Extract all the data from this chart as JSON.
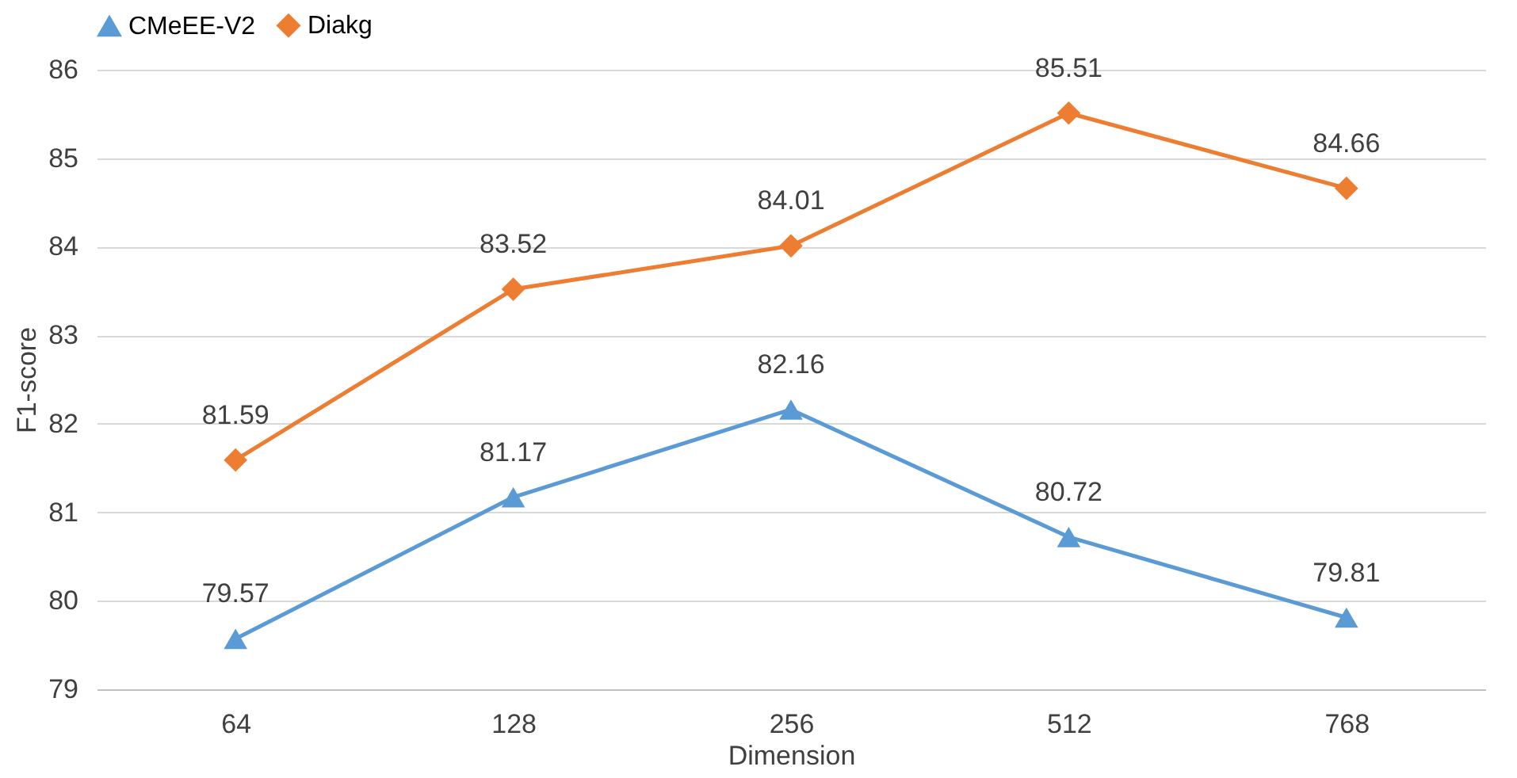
{
  "chart_data": {
    "type": "line",
    "xlabel": "Dimension",
    "ylabel": "F1-score",
    "categories": [
      "64",
      "128",
      "256",
      "512",
      "768"
    ],
    "series": [
      {
        "name": "CMeEE-V2",
        "color": "#5b9bd5",
        "marker": "triangle",
        "values": [
          79.57,
          81.17,
          82.16,
          80.72,
          79.81
        ]
      },
      {
        "name": "Diakg",
        "color": "#ed7d31",
        "marker": "diamond",
        "values": [
          81.59,
          83.52,
          84.01,
          85.51,
          84.66
        ]
      }
    ],
    "ylim": [
      79,
      86
    ],
    "yticks": [
      79,
      80,
      81,
      82,
      83,
      84,
      85,
      86
    ],
    "grid": "y",
    "legend": "top",
    "data_labels": true
  }
}
